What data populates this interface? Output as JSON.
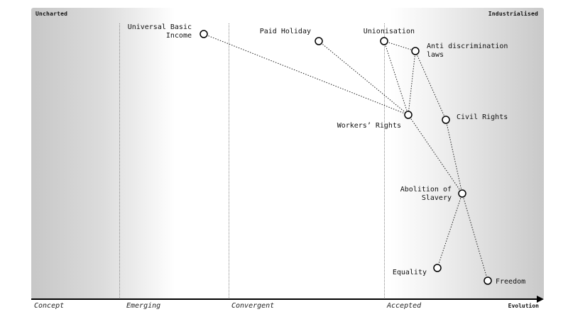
{
  "map": {
    "corner_left": "Uncharted",
    "corner_right": "Industrialised",
    "axis_title": "Evolution",
    "stages": [
      "Concept",
      "Emerging",
      "Convergent",
      "Accepted"
    ]
  },
  "components": [
    {
      "id": "ubi",
      "label": "Universal Basic Income"
    },
    {
      "id": "holiday",
      "label": "Paid Holiday"
    },
    {
      "id": "union",
      "label": "Unionisation"
    },
    {
      "id": "antidisc",
      "label": "Anti discrimination laws"
    },
    {
      "id": "workers",
      "label": "Workers’ Rights"
    },
    {
      "id": "civil",
      "label": "Civil Rights"
    },
    {
      "id": "abolition",
      "label": "Abolition of Slavery"
    },
    {
      "id": "equality",
      "label": "Equality"
    },
    {
      "id": "freedom",
      "label": "Freedom"
    }
  ],
  "links": [
    [
      "ubi",
      "workers"
    ],
    [
      "holiday",
      "workers"
    ],
    [
      "union",
      "workers"
    ],
    [
      "union",
      "antidisc"
    ],
    [
      "antidisc",
      "workers"
    ],
    [
      "antidisc",
      "civil"
    ],
    [
      "civil",
      "abolition"
    ],
    [
      "workers",
      "abolition"
    ],
    [
      "abolition",
      "equality"
    ],
    [
      "abolition",
      "freedom"
    ]
  ]
}
